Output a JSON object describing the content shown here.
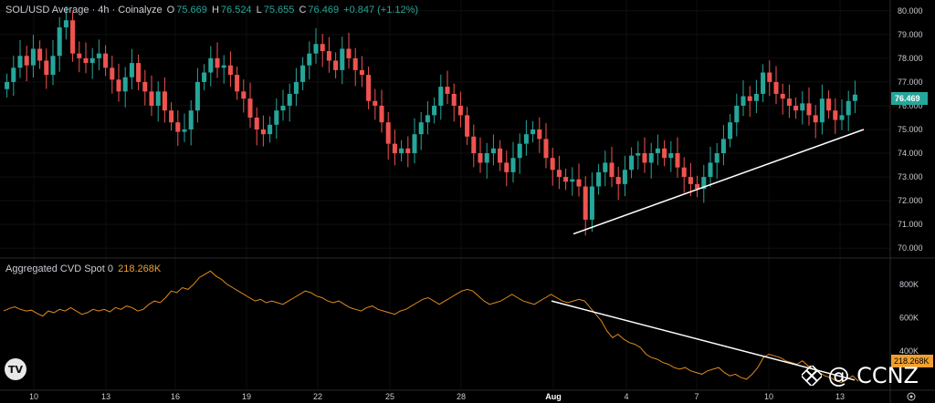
{
  "header": {
    "symbol": "SOL/USD Average · 4h · Coinalyze",
    "o_label": "O",
    "o_value": "75.669",
    "h_label": "H",
    "h_value": "76.524",
    "l_label": "L",
    "l_value": "75.655",
    "c_label": "C",
    "c_value": "76.469",
    "change": "+0.847 (+1.12%)"
  },
  "indicator": {
    "title": "Aggregated CVD Spot 0",
    "value": "218.268K"
  },
  "watermark": {
    "text": "@ CCNZ",
    "logo": "CCNZ-diamond-logo"
  },
  "tv_logo": "TV",
  "colors": {
    "up": "#26a69a",
    "down": "#ef5350",
    "cvd": "#e08a1e",
    "bg": "#000000",
    "trend": "#ffffff"
  },
  "chart_data": [
    {
      "type": "candlestick",
      "title": "SOL/USD Average · 4h · Coinalyze",
      "ylim": [
        69.7,
        80.3
      ],
      "y_ticks": [
        "80.000",
        "79.000",
        "78.000",
        "77.000",
        "76.000",
        "75.000",
        "74.000",
        "73.000",
        "72.000",
        "71.000",
        "70.000"
      ],
      "last_price": "76.469",
      "x_tick_labels": [
        "10",
        "13",
        "16",
        "19",
        "22",
        "25",
        "28",
        "Aug",
        "4",
        "7",
        "10",
        "13"
      ],
      "close_series": [
        77.0,
        77.6,
        78.1,
        77.7,
        78.4,
        77.9,
        77.3,
        78.1,
        79.3,
        79.6,
        78.2,
        78.0,
        77.8,
        78.0,
        78.2,
        77.6,
        77.1,
        76.6,
        77.2,
        77.8,
        77.0,
        76.6,
        76.0,
        76.6,
        75.8,
        75.3,
        74.9,
        75.0,
        75.8,
        77.0,
        77.4,
        78.0,
        77.6,
        77.7,
        77.3,
        76.6,
        76.3,
        75.5,
        75.0,
        74.8,
        75.2,
        75.8,
        76.0,
        76.5,
        77.0,
        77.7,
        78.2,
        78.6,
        78.3,
        77.9,
        77.5,
        78.4,
        78.0,
        77.5,
        77.3,
        76.2,
        76.0,
        75.3,
        74.4,
        74.0,
        74.2,
        74.0,
        74.8,
        75.3,
        75.6,
        76.0,
        76.8,
        76.5,
        76.0,
        75.6,
        74.7,
        74.0,
        73.6,
        74.0,
        74.2,
        73.6,
        73.2,
        73.8,
        74.4,
        74.8,
        75.0,
        74.6,
        73.8,
        73.3,
        73.0,
        72.8,
        72.9,
        72.6,
        71.2,
        72.6,
        73.2,
        73.6,
        73.0,
        72.7,
        73.3,
        73.9,
        74.0,
        73.6,
        74.0,
        74.2,
        73.8,
        74.0,
        73.4,
        73.0,
        72.7,
        72.5,
        73.0,
        73.6,
        74.0,
        74.6,
        75.3,
        76.0,
        76.4,
        76.2,
        76.5,
        77.4,
        77.0,
        76.5,
        76.3,
        76.0,
        75.8,
        76.1,
        75.6,
        75.3,
        76.3,
        75.8,
        75.4,
        75.6,
        76.2,
        76.469
      ],
      "trendline": {
        "from": {
          "x": "Aug",
          "y": 70.6
        },
        "to": {
          "x": "13",
          "y": 75.0
        }
      }
    },
    {
      "type": "line",
      "title": "Aggregated CVD Spot 0",
      "ylim": [
        180,
        920
      ],
      "y_ticks": [
        "800K",
        "600K",
        "400K"
      ],
      "last_value": "218.268K",
      "values": [
        640,
        655,
        665,
        650,
        640,
        645,
        625,
        610,
        640,
        630,
        650,
        640,
        660,
        640,
        620,
        630,
        650,
        640,
        650,
        635,
        660,
        650,
        670,
        660,
        640,
        650,
        680,
        700,
        690,
        720,
        760,
        750,
        780,
        770,
        800,
        840,
        860,
        880,
        850,
        830,
        800,
        780,
        760,
        740,
        720,
        700,
        710,
        690,
        700,
        690,
        680,
        700,
        720,
        740,
        760,
        750,
        730,
        720,
        700,
        690,
        700,
        680,
        660,
        650,
        640,
        660,
        670,
        650,
        640,
        630,
        620,
        640,
        650,
        670,
        690,
        710,
        720,
        700,
        680,
        700,
        720,
        740,
        760,
        770,
        760,
        730,
        700,
        680,
        690,
        700,
        720,
        740,
        720,
        700,
        690,
        680,
        700,
        720,
        740,
        720,
        700,
        690,
        700,
        710,
        700,
        660,
        620,
        580,
        520,
        480,
        500,
        470,
        450,
        440,
        420,
        380,
        360,
        350,
        330,
        320,
        300,
        290,
        300,
        280,
        270,
        260,
        280,
        290,
        300,
        270,
        250,
        260,
        240,
        230,
        260,
        300,
        360,
        380,
        370,
        360,
        340,
        330,
        320,
        340,
        310,
        290,
        270,
        250,
        240,
        220,
        210,
        230,
        250,
        218
      ],
      "trendline": {
        "from": {
          "x": "Aug",
          "y": 700
        },
        "to": {
          "x": "13",
          "y": 225
        }
      }
    }
  ]
}
